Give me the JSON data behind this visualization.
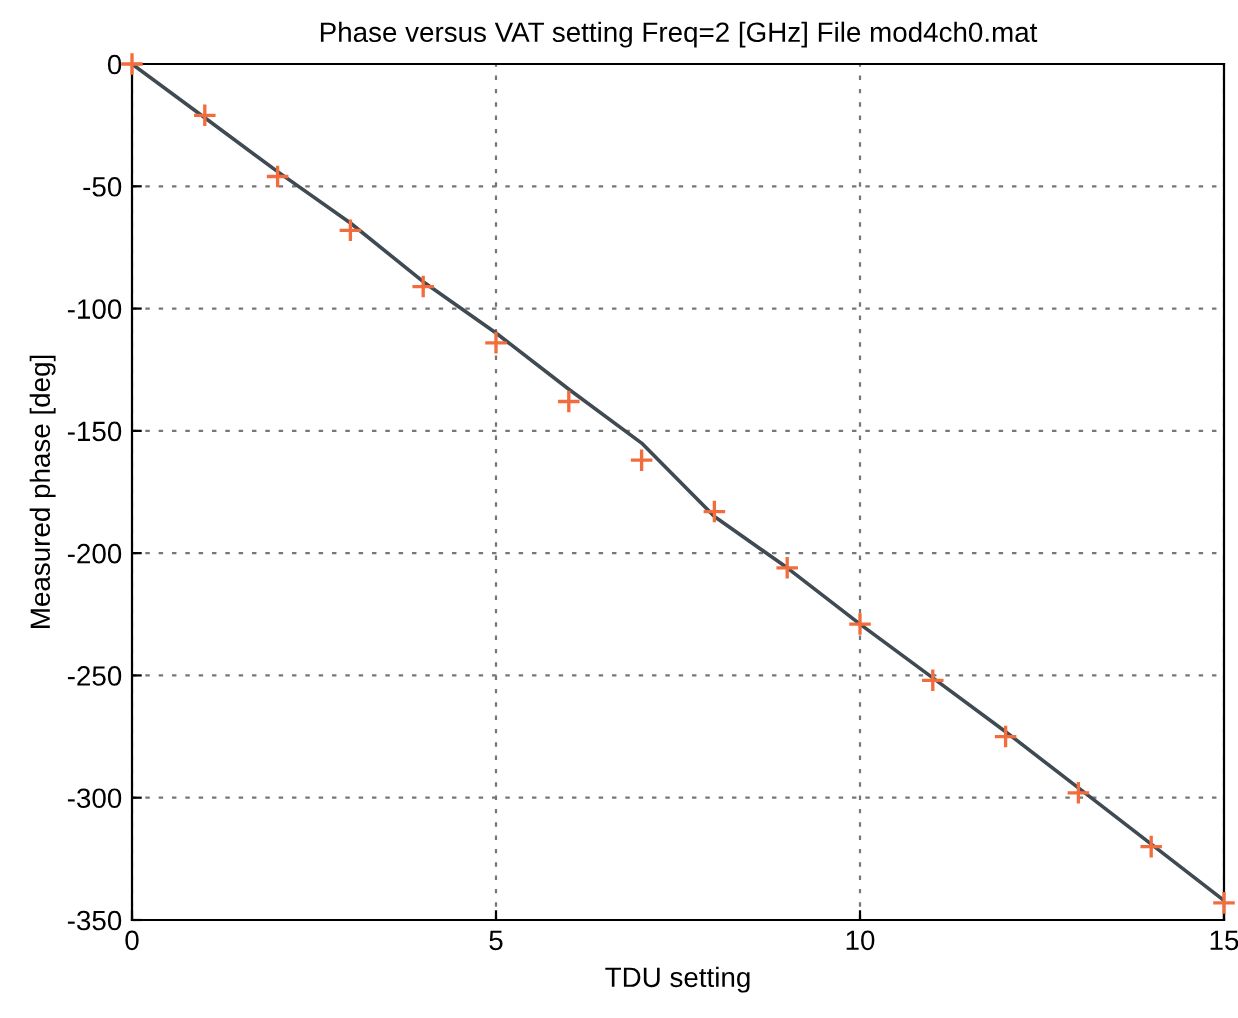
{
  "chart_data": {
    "type": "line",
    "title": "Phase versus VAT setting Freq=2 [GHz] File mod4ch0.mat",
    "xlabel": "TDU setting",
    "ylabel": "Measured phase [deg]",
    "xlim": [
      0,
      15
    ],
    "xticks": [
      0,
      5,
      10,
      15
    ],
    "ylim": [
      -350,
      0
    ],
    "yticks": [
      -350,
      -300,
      -250,
      -200,
      -150,
      -100,
      -50,
      0
    ],
    "grid": true,
    "legend": false,
    "series": [
      {
        "color": "#3f4a52",
        "line_style": "solid",
        "marker": "none",
        "x": [
          0,
          1,
          2,
          3,
          4,
          5,
          6,
          7,
          8,
          9,
          10,
          11,
          12,
          13,
          14,
          15
        ],
        "values": [
          0,
          -22,
          -44,
          -65,
          -89,
          -110,
          -133,
          -155,
          -185,
          -206,
          -229,
          -251,
          -273,
          -296,
          -319,
          -342
        ]
      },
      {
        "type": "scatter",
        "color": "#f26d3d",
        "marker": "cross",
        "x": [
          0,
          1,
          2,
          3,
          4,
          5,
          6,
          7,
          8,
          9,
          10,
          11,
          12,
          13,
          14,
          15
        ],
        "values": [
          0,
          -21,
          -46,
          -68,
          -91,
          -114,
          -138,
          -162,
          -183,
          -206,
          -229,
          -252,
          -275,
          -298,
          -320,
          -343
        ]
      }
    ]
  }
}
